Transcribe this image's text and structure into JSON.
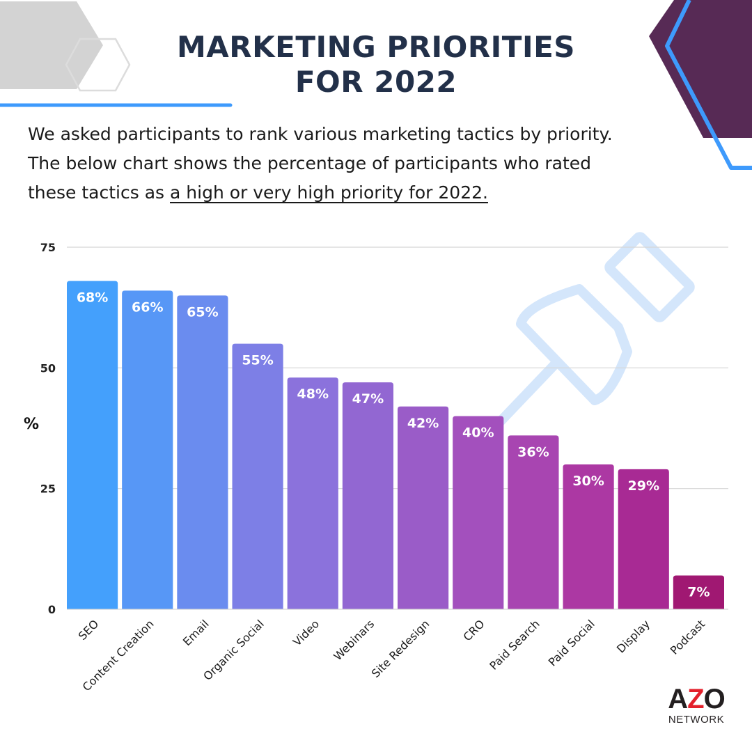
{
  "title": {
    "line1": "MARKETING PRIORITIES",
    "line2": "FOR 2022"
  },
  "intro": {
    "line1": "We asked participants to rank various marketing tactics by priority.",
    "line2": "The below chart shows the percentage of participants who rated",
    "line3_plain": "these tactics as ",
    "line3_underlined": "a high or very high priority for 2022. "
  },
  "logo": {
    "a": "A",
    "z": "Z",
    "o": "O",
    "network": "NETWORK"
  },
  "chart_data": {
    "type": "bar",
    "title": "",
    "xlabel": "",
    "ylabel": "%",
    "ylim": [
      0,
      75
    ],
    "yticks": [
      "0",
      "25",
      "50",
      "75"
    ],
    "grid": true,
    "categories": [
      "SEO",
      "Content Creation",
      "Email",
      "Organic Social",
      "Video",
      "Webinars",
      "Site Redesign",
      "CRO",
      "Paid Search",
      "Paid Social",
      "Display",
      "Podcast"
    ],
    "values": [
      68,
      66,
      65,
      55,
      48,
      47,
      42,
      40,
      36,
      30,
      29,
      7
    ],
    "data_labels": [
      "68%",
      "66%",
      "65%",
      "55%",
      "48%",
      "47%",
      "42%",
      "40%",
      "36%",
      "30%",
      "29%",
      "7%"
    ],
    "colors": [
      "#44a0fc",
      "#5797f6",
      "#6a8cef",
      "#7d7fe6",
      "#8b72dc",
      "#9267d2",
      "#9a5cc8",
      "#a350bd",
      "#a845b1",
      "#ac38a3",
      "#a82a94",
      "#a01872"
    ]
  },
  "colors": {
    "title": "#223049",
    "accent_blue": "#3e9afc",
    "plum": "#572a55",
    "grey_hex": "#d3d3d3",
    "pin": "#d4e6fb"
  }
}
